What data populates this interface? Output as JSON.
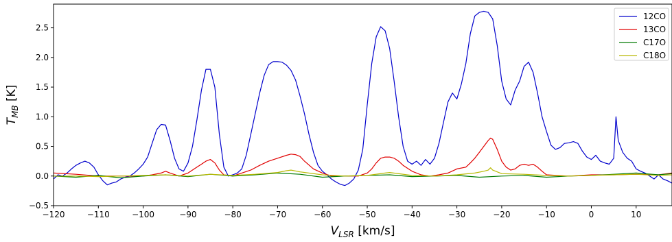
{
  "chart_data": {
    "type": "line",
    "title": "",
    "xlabel": "V",
    "xlabel_sub": "LSR",
    "xlabel_unit": " [km/s]",
    "ylabel": "T",
    "ylabel_sub": "MB",
    "ylabel_unit": " [K]",
    "xlim": [
      -120,
      18
    ],
    "ylim": [
      -0.5,
      2.9
    ],
    "xticks": [
      -120,
      -110,
      -100,
      -90,
      -80,
      -70,
      -60,
      -50,
      -40,
      -30,
      -20,
      -10,
      0,
      10
    ],
    "xtick_labels": [
      "−120",
      "−110",
      "−100",
      "−90",
      "−80",
      "−70",
      "−60",
      "−50",
      "−40",
      "−30",
      "−20",
      "−10",
      "0",
      "10"
    ],
    "yticks": [
      -0.5,
      0.0,
      0.5,
      1.0,
      1.5,
      2.0,
      2.5
    ],
    "ytick_labels": [
      "−0.5",
      "0.0",
      "0.5",
      "1.0",
      "1.5",
      "2.0",
      "2.5"
    ],
    "grid": false,
    "legend_position": "top-right",
    "series": [
      {
        "name": "12CO",
        "color": "#0000cc",
        "x": [
          -120,
          -119,
          -118,
          -117,
          -116,
          -115,
          -114,
          -113,
          -112,
          -111,
          -110,
          -109,
          -108,
          -107,
          -106,
          -105,
          -104,
          -103,
          -102,
          -101,
          -100,
          -99,
          -98,
          -97,
          -96,
          -95,
          -94,
          -93,
          -92,
          -91,
          -90,
          -89,
          -88,
          -87,
          -86,
          -85,
          -84,
          -83,
          -82,
          -81,
          -80,
          -79,
          -78,
          -77,
          -76,
          -75,
          -74,
          -73,
          -72,
          -71,
          -70,
          -69,
          -68,
          -67,
          -66,
          -65,
          -64,
          -63,
          -62,
          -61,
          -60,
          -59,
          -58,
          -57,
          -56,
          -55,
          -54,
          -53,
          -52,
          -51,
          -50,
          -49,
          -48,
          -47,
          -46,
          -45,
          -44,
          -43,
          -42,
          -41,
          -40,
          -39,
          -38,
          -37,
          -36,
          -35,
          -34,
          -33,
          -32,
          -31,
          -30,
          -29,
          -28,
          -27,
          -26,
          -25,
          -24,
          -23,
          -22,
          -21,
          -20,
          -19,
          -18,
          -17,
          -16,
          -15,
          -14,
          -13,
          -12,
          -11,
          -10,
          -9,
          -8,
          -7,
          -6,
          -5,
          -4,
          -3,
          -2,
          -1,
          0,
          1,
          2,
          3,
          4,
          5,
          5.5,
          6,
          7,
          8,
          9,
          10,
          11,
          12,
          13,
          14,
          15,
          16,
          17,
          18
        ],
        "y": [
          -0.05,
          0.02,
          0.0,
          0.05,
          0.12,
          0.18,
          0.22,
          0.25,
          0.22,
          0.15,
          0.02,
          -0.08,
          -0.15,
          -0.12,
          -0.1,
          -0.05,
          -0.02,
          0.0,
          0.05,
          0.12,
          0.2,
          0.32,
          0.55,
          0.78,
          0.87,
          0.86,
          0.6,
          0.3,
          0.12,
          0.08,
          0.22,
          0.5,
          0.95,
          1.45,
          1.8,
          1.8,
          1.5,
          0.7,
          0.15,
          0.0,
          0.02,
          0.05,
          0.12,
          0.35,
          0.7,
          1.05,
          1.4,
          1.7,
          1.88,
          1.93,
          1.93,
          1.92,
          1.87,
          1.78,
          1.62,
          1.35,
          1.05,
          0.7,
          0.4,
          0.18,
          0.08,
          0.02,
          -0.05,
          -0.1,
          -0.14,
          -0.16,
          -0.12,
          -0.05,
          0.1,
          0.45,
          1.2,
          1.9,
          2.35,
          2.52,
          2.45,
          2.15,
          1.6,
          1.0,
          0.5,
          0.25,
          0.2,
          0.25,
          0.18,
          0.28,
          0.2,
          0.3,
          0.55,
          0.9,
          1.25,
          1.4,
          1.3,
          1.55,
          1.9,
          2.4,
          2.7,
          2.76,
          2.78,
          2.76,
          2.65,
          2.2,
          1.6,
          1.3,
          1.2,
          1.45,
          1.6,
          1.85,
          1.92,
          1.75,
          1.4,
          1.0,
          0.75,
          0.52,
          0.45,
          0.48,
          0.55,
          0.56,
          0.58,
          0.55,
          0.42,
          0.32,
          0.28,
          0.35,
          0.25,
          0.22,
          0.2,
          0.3,
          1.0,
          0.6,
          0.4,
          0.3,
          0.25,
          0.12,
          0.08,
          0.05,
          0.0,
          -0.05,
          0.02,
          -0.05,
          -0.08,
          -0.12
        ]
      },
      {
        "name": "13CO",
        "color": "#e00000",
        "x": [
          -120,
          -115,
          -110,
          -105,
          -100,
          -98,
          -96,
          -95,
          -94,
          -92,
          -90,
          -88,
          -87,
          -86,
          -85,
          -84,
          -83,
          -82,
          -80,
          -78,
          -76,
          -74,
          -72,
          -70,
          -68,
          -67,
          -66,
          -65,
          -64,
          -62,
          -60,
          -58,
          -55,
          -52,
          -50,
          -49,
          -48,
          -47,
          -46,
          -45,
          -44,
          -43,
          -42,
          -40,
          -38,
          -36,
          -34,
          -32,
          -30,
          -28,
          -27,
          -26,
          -25,
          -24,
          -23,
          -22.5,
          -22,
          -21,
          -20,
          -19,
          -18,
          -17,
          -16,
          -15,
          -14,
          -13,
          -12,
          -11,
          -10,
          -5,
          0,
          5,
          10,
          15,
          18
        ],
        "y": [
          0.05,
          0.03,
          0.0,
          0.0,
          0.0,
          0.02,
          0.05,
          0.08,
          0.05,
          0.0,
          0.05,
          0.15,
          0.2,
          0.25,
          0.28,
          0.22,
          0.1,
          0.02,
          0.0,
          0.05,
          0.1,
          0.18,
          0.25,
          0.3,
          0.35,
          0.37,
          0.36,
          0.33,
          0.25,
          0.12,
          0.05,
          0.0,
          0.0,
          0.0,
          0.05,
          0.12,
          0.22,
          0.3,
          0.32,
          0.32,
          0.3,
          0.25,
          0.18,
          0.08,
          0.02,
          0.0,
          0.02,
          0.05,
          0.12,
          0.15,
          0.22,
          0.3,
          0.4,
          0.5,
          0.6,
          0.64,
          0.62,
          0.45,
          0.25,
          0.15,
          0.1,
          0.12,
          0.18,
          0.2,
          0.18,
          0.2,
          0.15,
          0.08,
          0.02,
          0.0,
          0.02,
          0.02,
          0.03,
          0.02,
          0.05
        ]
      },
      {
        "name": "C17O",
        "color": "#007a00",
        "x": [
          -120,
          -115,
          -110,
          -105,
          -100,
          -95,
          -90,
          -85,
          -80,
          -75,
          -70,
          -65,
          -60,
          -55,
          -50,
          -45,
          -40,
          -35,
          -30,
          -25,
          -20,
          -15,
          -10,
          -5,
          0,
          5,
          10,
          15,
          18
        ],
        "y": [
          0.0,
          -0.02,
          0.01,
          -0.03,
          0.0,
          0.02,
          -0.01,
          0.03,
          0.0,
          0.02,
          0.05,
          0.03,
          -0.02,
          0.0,
          0.01,
          0.02,
          -0.01,
          0.0,
          0.01,
          -0.02,
          0.0,
          0.01,
          -0.02,
          0.0,
          0.01,
          0.03,
          0.05,
          0.02,
          0.04
        ]
      },
      {
        "name": "C18O",
        "color": "#b8b800",
        "x": [
          -120,
          -115,
          -110,
          -105,
          -100,
          -95,
          -90,
          -85,
          -80,
          -75,
          -70,
          -68,
          -67,
          -65,
          -60,
          -55,
          -50,
          -46,
          -45,
          -40,
          -35,
          -30,
          -26,
          -24,
          -23,
          -22.5,
          -22,
          -20,
          -15,
          -10,
          -5,
          0,
          5,
          10,
          15,
          18
        ],
        "y": [
          0.0,
          0.0,
          -0.01,
          0.0,
          0.01,
          0.02,
          0.0,
          0.03,
          0.01,
          0.03,
          0.06,
          0.09,
          0.1,
          0.07,
          0.02,
          0.0,
          0.01,
          0.05,
          0.06,
          0.01,
          0.0,
          0.02,
          0.05,
          0.08,
          0.1,
          0.14,
          0.1,
          0.04,
          0.03,
          0.01,
          0.0,
          0.01,
          0.02,
          0.03,
          0.01,
          0.02
        ]
      }
    ]
  }
}
